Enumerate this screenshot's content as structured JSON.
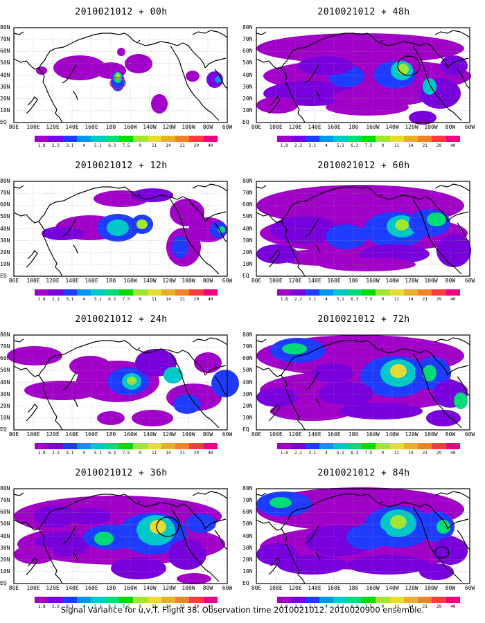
{
  "caption": "Signal Variance for u,v,T. Flight 38. Observation time 2010021012. 2010020900 ensemble.",
  "lon_labels": [
    "80E",
    "100E",
    "120E",
    "140E",
    "160E",
    "180",
    "160W",
    "140W",
    "120W",
    "100W",
    "80W",
    "60W"
  ],
  "lat_labels": [
    "80N",
    "70N",
    "60N",
    "50N",
    "40N",
    "30N",
    "20N",
    "10N",
    "EQ"
  ],
  "colorbar": {
    "labels": [
      "1.8",
      "2.2",
      "3.1",
      "4",
      "5.1",
      "6.3",
      "7.5",
      "9",
      "11",
      "14",
      "21",
      "29",
      "40"
    ],
    "colors": [
      "#a000c8",
      "#7800dc",
      "#1e3cff",
      "#0096f0",
      "#00c8c8",
      "#00dc78",
      "#00dc00",
      "#a0e632",
      "#e6dc32",
      "#e6af2d",
      "#f08228",
      "#fa3c3c",
      "#f00082"
    ]
  },
  "panels": [
    {
      "title": "2010021012 + 00h",
      "lead": "00h"
    },
    {
      "title": "2010021012 + 48h",
      "lead": "48h"
    },
    {
      "title": "2010021012 + 12h",
      "lead": "12h"
    },
    {
      "title": "2010021012 + 60h",
      "lead": "60h"
    },
    {
      "title": "2010021012 + 24h",
      "lead": "24h"
    },
    {
      "title": "2010021012 + 72h",
      "lead": "72h"
    },
    {
      "title": "2010021012 + 36h",
      "lead": "36h"
    },
    {
      "title": "2010021012 + 84h",
      "lead": "84h"
    }
  ],
  "map_colors": {
    "background": "#ffffff",
    "coast": "#000000",
    "grid": "#9a9a9a",
    "target_circle_00h": "#e0205a",
    "target_circle": "#000000"
  }
}
